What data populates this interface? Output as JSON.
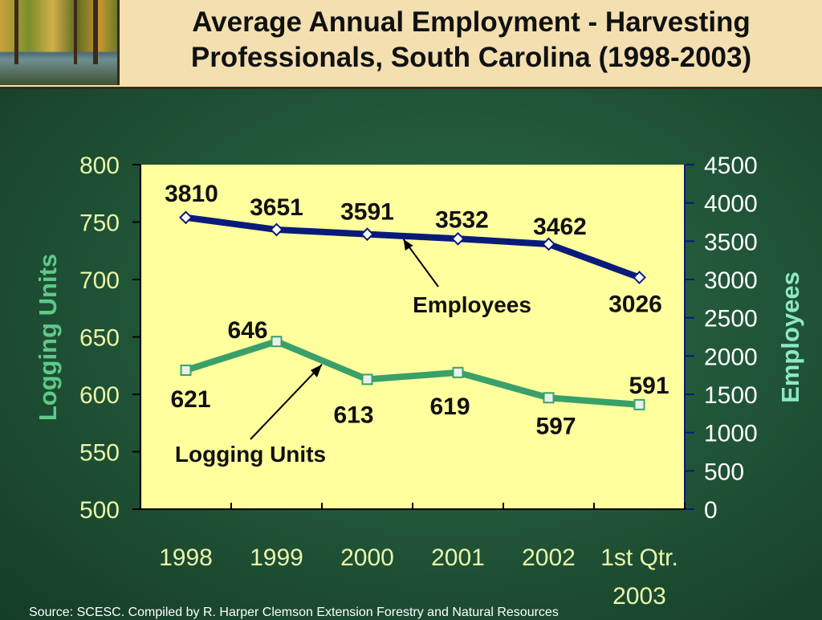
{
  "title_line1": "Average Annual Employment - Harvesting",
  "title_line2": "Professionals, South Carolina (1998-2003)",
  "source": "Source:  SCESC. Compiled by R. Harper Clemson Extension Forestry and Natural Resources",
  "colors": {
    "employees": "#0a1a7a",
    "logging_units": "#3aa06a",
    "plot_bg": "#ffff9e",
    "header_bg": "#f3dfb0"
  },
  "chart_data": {
    "type": "line",
    "categories": [
      "1998",
      "1999",
      "2000",
      "2001",
      "2002",
      "1st Qtr. 2003"
    ],
    "category_lines": [
      [
        "1998"
      ],
      [
        "1999"
      ],
      [
        "2000"
      ],
      [
        "2001"
      ],
      [
        "2002"
      ],
      [
        "1st Qtr.",
        "2003"
      ]
    ],
    "ylabel_left": "Logging Units",
    "ylabel_right": "Employees",
    "ylim_left": [
      500,
      800
    ],
    "yticks_left": [
      500,
      550,
      600,
      650,
      700,
      750,
      800
    ],
    "ylim_right": [
      0,
      4500
    ],
    "yticks_right": [
      0,
      500,
      1000,
      1500,
      2000,
      2500,
      3000,
      3500,
      4000,
      4500
    ],
    "grid": false,
    "series": [
      {
        "name": "Employees",
        "axis": "right",
        "values": [
          3810,
          3651,
          3591,
          3532,
          3462,
          3026
        ]
      },
      {
        "name": "Logging Units",
        "axis": "left",
        "values": [
          621,
          646,
          613,
          619,
          597,
          591
        ]
      }
    ],
    "annotations": [
      {
        "text": "Employees",
        "series": "Employees"
      },
      {
        "text": "Logging Units",
        "series": "Logging Units"
      }
    ]
  }
}
